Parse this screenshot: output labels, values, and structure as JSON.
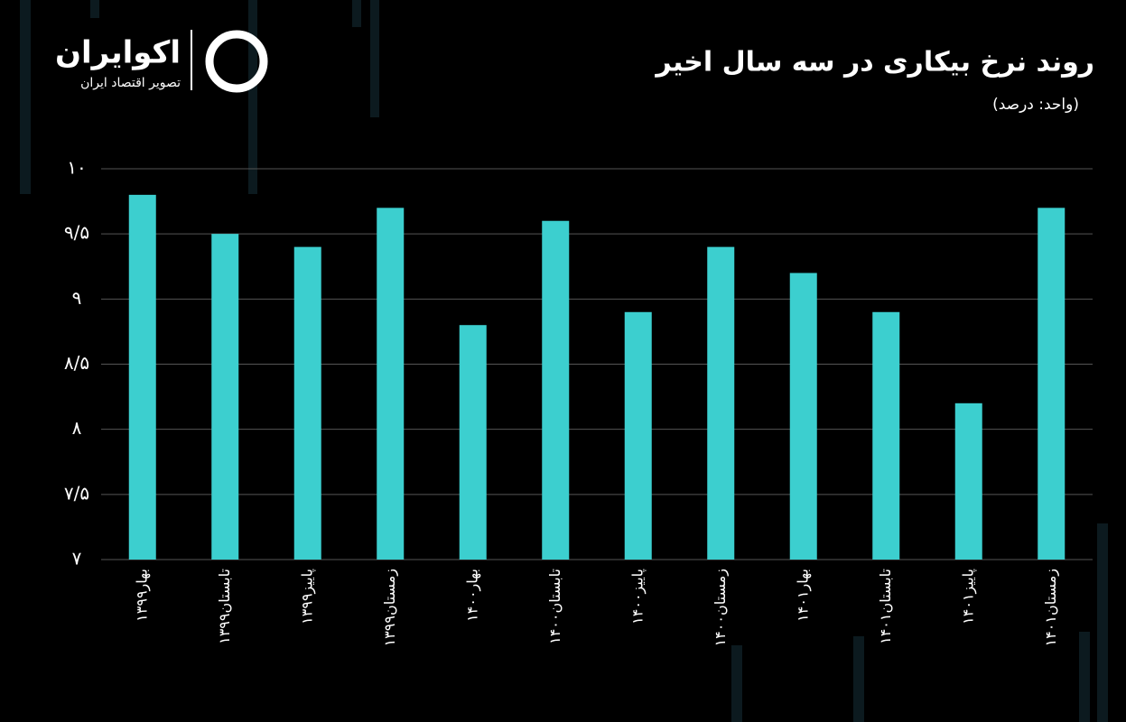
{
  "logo": {
    "name": "اکوایران",
    "tagline": "تصویر اقتصاد ایران"
  },
  "chart_data": {
    "type": "bar",
    "title": "روند نرخ بیکاری در سه سال اخیر",
    "subtitle": "(واحد: درصد)",
    "categories": [
      "بهار۱۳۹۹",
      "تابستان۱۳۹۹",
      "پاییز۱۳۹۹",
      "زمستان۱۳۹۹",
      "بهار۱۴۰۰",
      "تابستان۱۴۰۰",
      "پاییز۱۴۰۰",
      "زمستان۱۴۰۰",
      "بهار۱۴۰۱",
      "تابستان۱۴۰۱",
      "پاییز۱۴۰۱",
      "زمستان۱۴۰۱"
    ],
    "values": [
      9.8,
      9.5,
      9.4,
      9.7,
      8.8,
      9.6,
      8.9,
      9.4,
      9.2,
      8.9,
      8.2,
      9.7
    ],
    "color": "#3ccfcf",
    "ylim": [
      7,
      10
    ],
    "yticks": [
      {
        "value": 7,
        "label": "۷"
      },
      {
        "value": 7.5,
        "label": "۷/۵"
      },
      {
        "value": 8,
        "label": "۸"
      },
      {
        "value": 8.5,
        "label": "۸/۵"
      },
      {
        "value": 9,
        "label": "۹"
      },
      {
        "value": 9.5,
        "label": "۹/۵"
      },
      {
        "value": 10,
        "label": "۱۰"
      }
    ],
    "grid": true
  }
}
